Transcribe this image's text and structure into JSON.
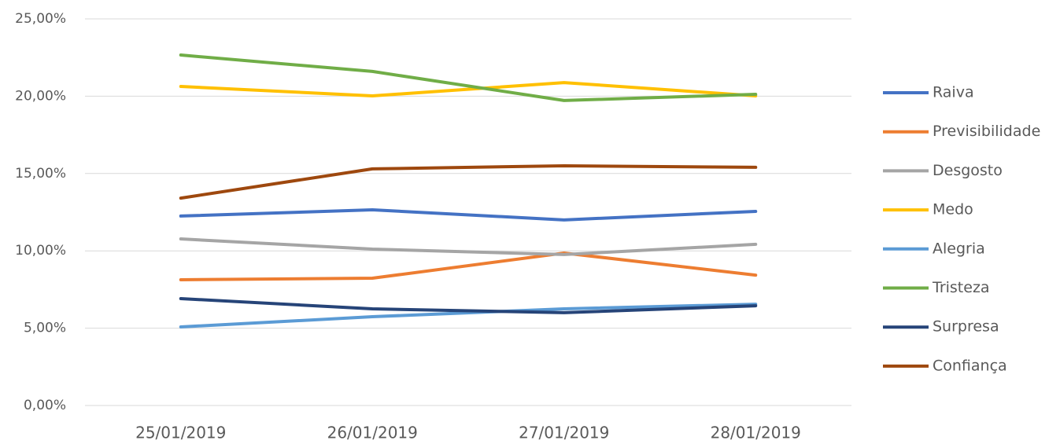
{
  "chart_data": {
    "type": "line",
    "categories": [
      "25/01/2019",
      "26/01/2019",
      "27/01/2019",
      "28/01/2019"
    ],
    "series": [
      {
        "name": "Raiva",
        "color": "#4472c4",
        "values": [
          12.25,
          12.65,
          12.0,
          12.55
        ]
      },
      {
        "name": "Previsibilidade",
        "color": "#ed7d31",
        "values": [
          8.13,
          8.23,
          9.86,
          8.43
        ]
      },
      {
        "name": "Desgosto",
        "color": "#a5a5a5",
        "values": [
          10.77,
          10.11,
          9.76,
          10.42
        ]
      },
      {
        "name": "Medo",
        "color": "#ffc000",
        "values": [
          20.63,
          20.02,
          20.88,
          20.02
        ]
      },
      {
        "name": "Alegria",
        "color": "#5b9bd5",
        "values": [
          5.08,
          5.74,
          6.25,
          6.55
        ]
      },
      {
        "name": "Tristeza",
        "color": "#70ad47",
        "values": [
          22.66,
          21.6,
          19.72,
          20.12
        ]
      },
      {
        "name": "Surpresa",
        "color": "#264478",
        "values": [
          6.91,
          6.25,
          6.0,
          6.45
        ]
      },
      {
        "name": "Confiança",
        "color": "#9e480e",
        "values": [
          13.41,
          15.3,
          15.5,
          15.4
        ]
      }
    ],
    "ylim": [
      0,
      25
    ],
    "yticks": [
      {
        "value": 0,
        "label": "0,00%"
      },
      {
        "value": 5,
        "label": "5,00%"
      },
      {
        "value": 10,
        "label": "10,00%"
      },
      {
        "value": 15,
        "label": "15,00%"
      },
      {
        "value": 20,
        "label": "20,00%"
      },
      {
        "value": 25,
        "label": "25,00%"
      }
    ],
    "grid": true,
    "legend": "right"
  }
}
